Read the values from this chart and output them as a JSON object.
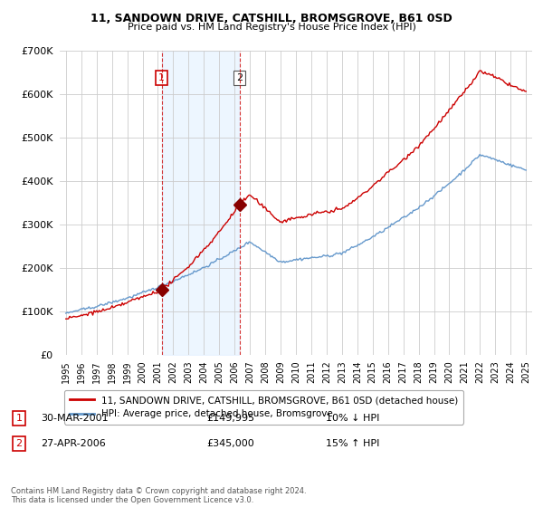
{
  "title": "11, SANDOWN DRIVE, CATSHILL, BROMSGROVE, B61 0SD",
  "subtitle": "Price paid vs. HM Land Registry's House Price Index (HPI)",
  "legend_line1": "11, SANDOWN DRIVE, CATSHILL, BROMSGROVE, B61 0SD (detached house)",
  "legend_line2": "HPI: Average price, detached house, Bromsgrove",
  "transaction1_label": "1",
  "transaction1_date": "30-MAR-2001",
  "transaction1_price": "£149,995",
  "transaction1_hpi": "10% ↓ HPI",
  "transaction2_label": "2",
  "transaction2_date": "27-APR-2006",
  "transaction2_price": "£345,000",
  "transaction2_hpi": "15% ↑ HPI",
  "footer": "Contains HM Land Registry data © Crown copyright and database right 2024.\nThis data is licensed under the Open Government Licence v3.0.",
  "sale_color": "#cc0000",
  "hpi_color": "#6699cc",
  "shade_color": "#ddeeff",
  "marker_color": "#880000",
  "vline_color": "#cc0000",
  "ylim_min": 0,
  "ylim_max": 700000,
  "background_color": "#ffffff",
  "grid_color": "#cccccc",
  "sale1_t": 2001.25,
  "sale1_p": 149995,
  "sale2_t": 2006.33,
  "sale2_p": 345000
}
